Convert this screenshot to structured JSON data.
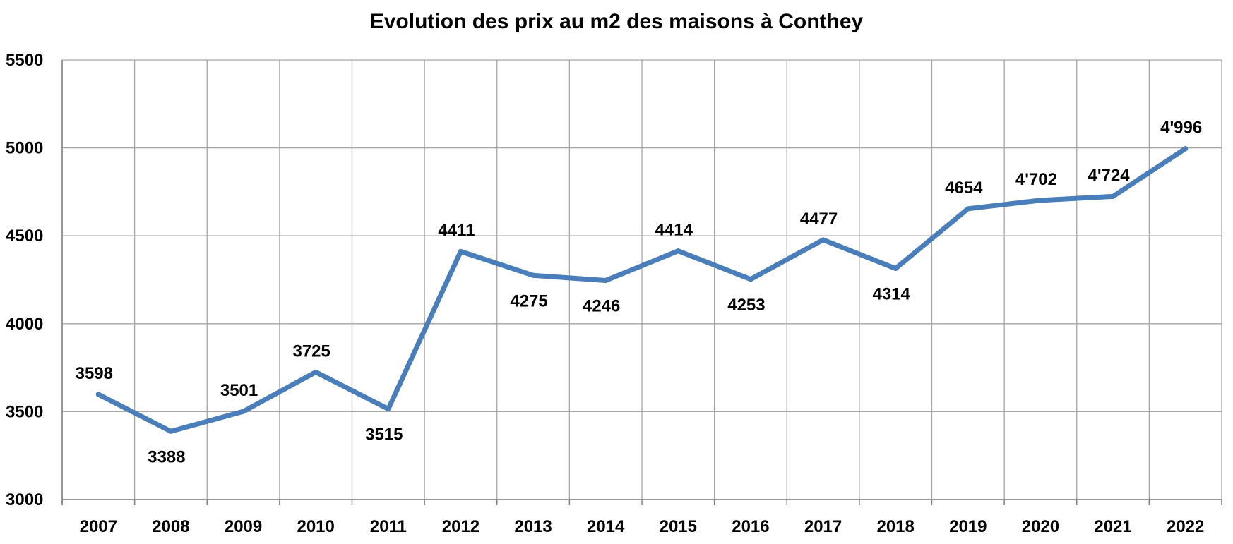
{
  "chart_data": {
    "type": "line",
    "title": "Evolution des prix au m2 des maisons à Conthey",
    "xlabel": "",
    "ylabel": "",
    "categories": [
      "2007",
      "2008",
      "2009",
      "2010",
      "2011",
      "2012",
      "2013",
      "2014",
      "2015",
      "2016",
      "2017",
      "2018",
      "2019",
      "2020",
      "2021",
      "2022"
    ],
    "series": [
      {
        "values": [
          3598,
          3388,
          3501,
          3725,
          3515,
          4411,
          4275,
          4246,
          4414,
          4253,
          4477,
          4314,
          4654,
          4702,
          4724,
          4996
        ],
        "labels": [
          "3598",
          "3388",
          "3501",
          "3725",
          "3515",
          "4411",
          "4275",
          "4246",
          "4414",
          "4253",
          "4477",
          "4314",
          "4654",
          "4'702",
          "4'724",
          "4'996"
        ],
        "label_positions": [
          "above",
          "below",
          "above",
          "above",
          "below",
          "above",
          "below",
          "below",
          "above",
          "below",
          "above",
          "below",
          "above",
          "above",
          "above",
          "above"
        ],
        "color": "#4a7ebb"
      }
    ],
    "yticks": [
      "3000",
      "3500",
      "4000",
      "4500",
      "5000",
      "5500"
    ],
    "ylim": [
      3000,
      5500
    ],
    "grid": true,
    "legend": "none"
  },
  "colors": {
    "grid": "#a6a6a6",
    "axis": "#7f7f7f",
    "line": "#4a7ebb"
  }
}
